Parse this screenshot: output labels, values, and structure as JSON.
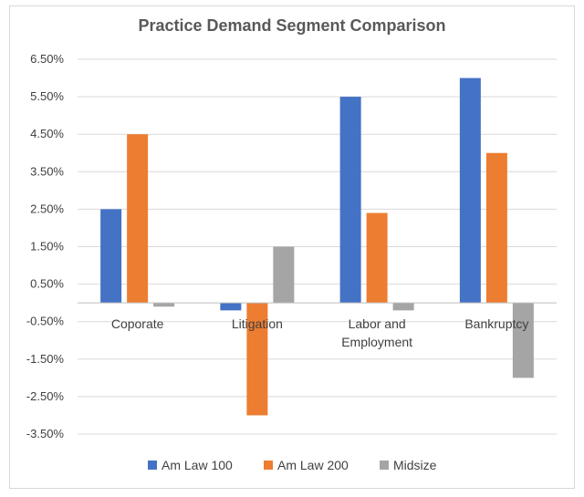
{
  "chart_data": {
    "type": "bar",
    "title": "Practice Demand Segment Comparison",
    "categories": [
      "Coporate",
      "Litigation",
      "Labor and Employment",
      "Bankruptcy"
    ],
    "category_lines": [
      [
        "Coporate"
      ],
      [
        "Litigation"
      ],
      [
        "Labor and",
        "Employment"
      ],
      [
        "Bankruptcy"
      ]
    ],
    "series": [
      {
        "name": "Am Law 100",
        "color": "#4472c4",
        "values": [
          2.5,
          -0.2,
          5.5,
          6.0
        ]
      },
      {
        "name": "Am Law 200",
        "color": "#ed7d31",
        "values": [
          4.5,
          -3.0,
          2.4,
          4.0
        ]
      },
      {
        "name": "Midsize",
        "color": "#a5a5a5",
        "values": [
          -0.1,
          1.5,
          -0.2,
          -2.0
        ]
      }
    ],
    "yticks": [
      "6.50%",
      "5.50%",
      "4.50%",
      "3.50%",
      "2.50%",
      "1.50%",
      "0.50%",
      "-0.50%",
      "-1.50%",
      "-2.50%",
      "-3.50%"
    ],
    "ylim": [
      -3.5,
      6.5
    ],
    "xlabel": "",
    "ylabel": "",
    "grid": true,
    "legend_position": "bottom"
  }
}
